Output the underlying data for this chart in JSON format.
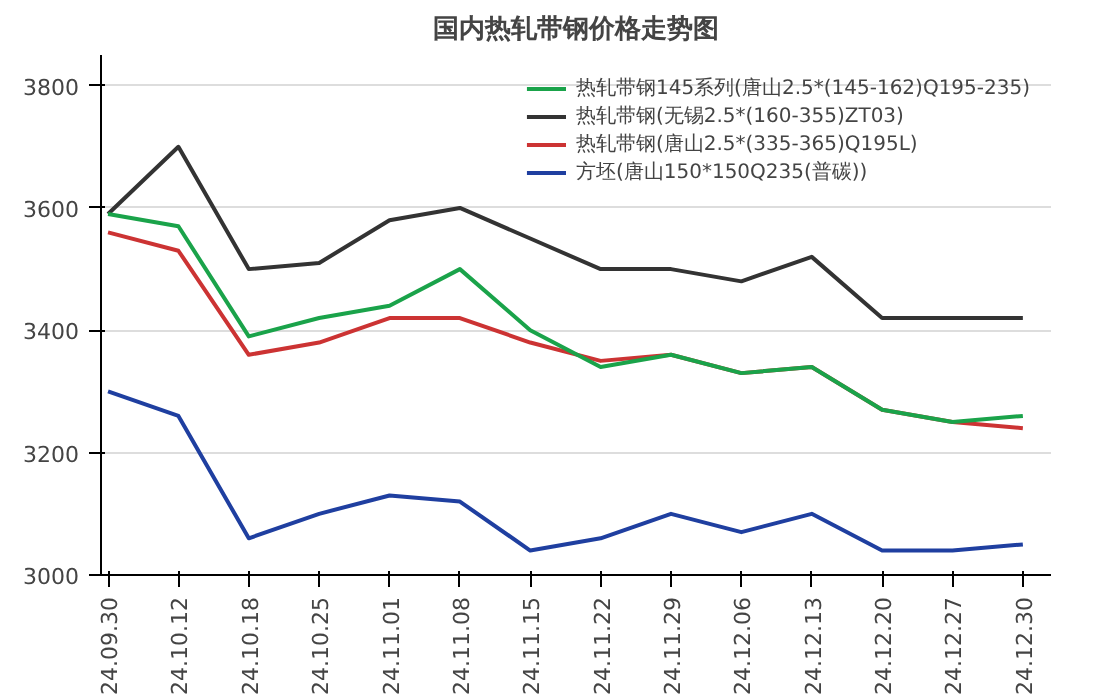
{
  "chart_data": {
    "type": "line",
    "title": "国内热轧带钢价格走势图",
    "categories": [
      "24.09.30",
      "24.10.12",
      "24.10.18",
      "24.10.25",
      "24.11.01",
      "24.11.08",
      "24.11.15",
      "24.11.22",
      "24.11.29",
      "24.12.06",
      "24.12.13",
      "24.12.20",
      "24.12.27",
      "24.12.30"
    ],
    "series": [
      {
        "name": "热轧带钢145系列(唐山2.5*(145-162)Q195-235)",
        "color": "#1aa34a",
        "values": [
          3590,
          3570,
          3390,
          3420,
          3440,
          3500,
          3400,
          3340,
          3360,
          3330,
          3340,
          3270,
          3250,
          3260
        ]
      },
      {
        "name": "热轧带钢(无锡2.5*(160-355)ZT03)",
        "color": "#333333",
        "values": [
          3590,
          3700,
          3500,
          3510,
          3580,
          3600,
          3550,
          3500,
          3500,
          3480,
          3520,
          3420,
          3420,
          3420
        ]
      },
      {
        "name": "热轧带钢(唐山2.5*(335-365)Q195L)",
        "color": "#cc3333",
        "values": [
          3560,
          3530,
          3360,
          3380,
          3420,
          3420,
          3380,
          3350,
          3360,
          3330,
          3340,
          3270,
          3250,
          3240
        ]
      },
      {
        "name": "方坯(唐山150*150Q235(普碳))",
        "color": "#1f3fa0",
        "values": [
          3300,
          3260,
          3060,
          3100,
          3130,
          3120,
          3040,
          3060,
          3100,
          3070,
          3100,
          3040,
          3040,
          3050
        ]
      }
    ],
    "ylim": [
      3000,
      3850
    ],
    "yticks": [
      3000,
      3200,
      3400,
      3600,
      3800
    ],
    "grid": "y",
    "legend": "top",
    "marker": "none",
    "line_style": "solid"
  }
}
